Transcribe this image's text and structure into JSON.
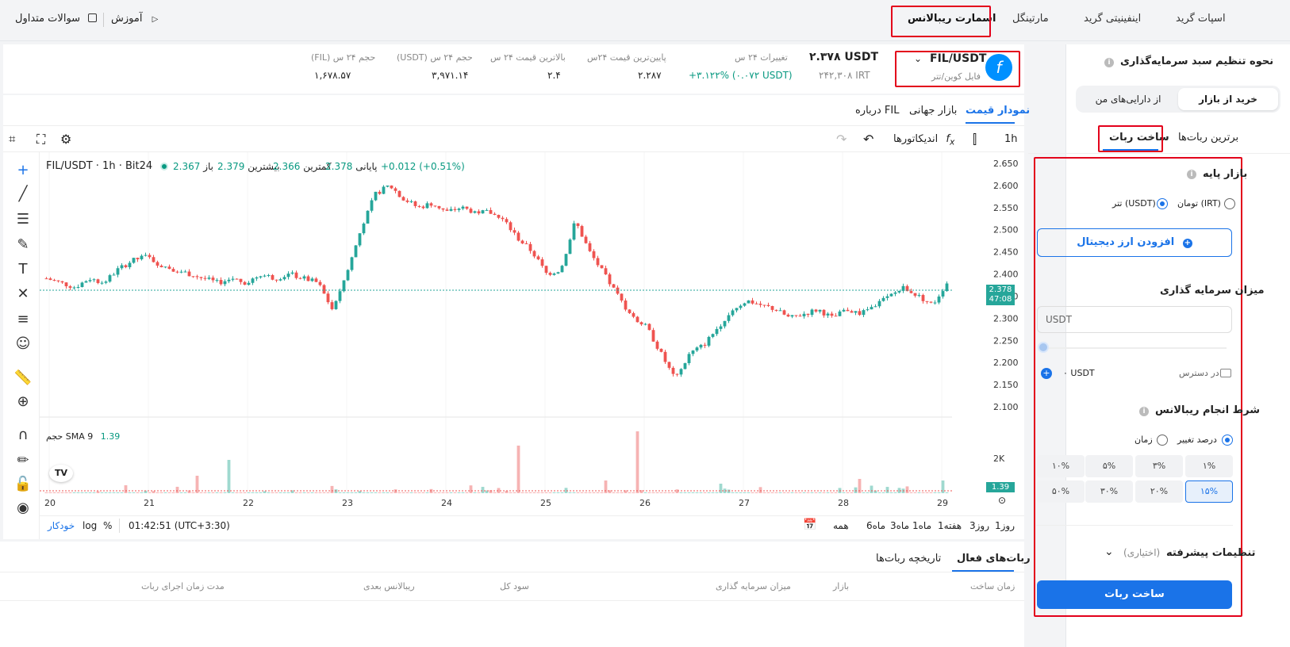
{
  "topnav": {
    "tabs": [
      "اسپات گرید",
      "اینفینیتی گرید",
      "مارتینگل",
      "اسمارت ریبالانس"
    ],
    "faq": "سوالات متداول",
    "tutorial": "آموزش"
  },
  "ticker": {
    "pair": "FIL/USDT",
    "pair_fa": "فایل کوین/تتر",
    "price_usdt": "۲.۳۷۸ USDT",
    "price_irt": "۲۴۲,۳۰۸ IRT",
    "stats": [
      {
        "label": "تغییرات ۲۴ س",
        "value": "+۳.۱۲۲% (۰.۰۷۲ USDT)"
      },
      {
        "label": "پایین‌ترین قیمت ۲۴س",
        "value": "۲.۲۸۷"
      },
      {
        "label": "بالاترین قیمت ۲۴ س",
        "value": "۲.۴"
      },
      {
        "label": "حجم ۲۴ س (USDT)",
        "value": "۳,۹۷۱.۱۴"
      },
      {
        "label": "حجم ۲۴ س (FIL)",
        "value": "۱,۶۷۸.۵۷"
      }
    ]
  },
  "chart_tabs": [
    "نمودار قیمت",
    "بازار جهانی",
    "درباره FIL"
  ],
  "toolbar": {
    "interval": "1h",
    "indicators": "اندیکاتورها"
  },
  "legend": {
    "symbol": "FIL/USDT · 1h · Bit24",
    "open_label": "باز",
    "open": "2.367",
    "high_label": "بیشترین",
    "high": "2.379",
    "low_label": "کمترین",
    "low": "2.366",
    "close_label": "پایانی",
    "close": "2.378",
    "change": "+0.012 (+0.51%)"
  },
  "volume_legend": {
    "label": "حجم",
    "sma": "SMA 9",
    "value": "1.39"
  },
  "price_badge": {
    "price": "2.378",
    "timer": "47:08"
  },
  "volume_badge": "1.39",
  "y_axis_labels": [
    "2.650",
    "2.600",
    "2.550",
    "2.500",
    "2.450",
    "2.400",
    "2.350",
    "2.300",
    "2.250",
    "2.200",
    "2.150",
    "2.100"
  ],
  "volume_axis_label": "2K",
  "x_axis_labels": [
    "20",
    "21",
    "22",
    "23",
    "24",
    "25",
    "26",
    "27",
    "28",
    "29"
  ],
  "ranges": [
    "1روز",
    "3روز",
    "1هفته",
    "1ماه",
    "3ماه",
    "6ماه",
    "همه"
  ],
  "status": {
    "time": "01:42:51 (UTC+3:30)",
    "pct": "%",
    "log": "log",
    "auto": "خودکار"
  },
  "bottom": {
    "tabs": [
      "ربات‌های فعال",
      "تاریخچه ربات‌ها"
    ],
    "columns": [
      "زمان ساخت",
      "بازار",
      "میزان سرمایه گذاری",
      "سود کل",
      "ریبالانس بعدی",
      "مدت زمان اجرای ربات"
    ]
  },
  "panel": {
    "title": "نحوه تنظیم سبد سرمایه‌گذاری",
    "seg": [
      "خرید از بازار",
      "از دارایی‌های من"
    ],
    "tabs": [
      "برترین ربات‌ها",
      "ساخت ربات"
    ],
    "base_market": "بازار پایه",
    "base_opts": [
      "تومان (IRT)",
      "تتر (USDT)"
    ],
    "add_crypto": "افزودن ارز دیجیتال",
    "invest_label": "میزان سرمایه گذاری",
    "invest_placeholder": "USDT",
    "available_label": "در دسترس:",
    "available_value": "۰ USDT",
    "rebalance_cond": "شرط انجام ریبالانس",
    "cond_opts": [
      "درصد تغییر",
      "زمان"
    ],
    "percents": [
      "۱%",
      "۳%",
      "۵%",
      "۱۰%",
      "۱۵%",
      "۲۰%",
      "۳۰%",
      "۵۰%"
    ],
    "advanced": "تنظیمات پیشرفته",
    "optional": "(اختیاری)",
    "submit": "ساخت ربات"
  },
  "colors": {
    "up": "#26a69a",
    "down": "#ef5350",
    "accent": "#1a73e8",
    "highlight": "#e3001b"
  },
  "chart_data": {
    "type": "candlestick",
    "symbol": "FIL/USDT",
    "interval": "1h",
    "x_ticks": [
      "20",
      "21",
      "22",
      "23",
      "24",
      "25",
      "26",
      "27",
      "28",
      "29"
    ],
    "ylim": [
      2.1,
      2.65
    ],
    "close_path": [
      2.39,
      2.38,
      2.37,
      2.39,
      2.38,
      2.41,
      2.43,
      2.44,
      2.42,
      2.41,
      2.4,
      2.39,
      2.38,
      2.39,
      2.38,
      2.4,
      2.39,
      2.4,
      2.39,
      2.38,
      2.32,
      2.4,
      2.5,
      2.58,
      2.6,
      2.57,
      2.55,
      2.56,
      2.54,
      2.55,
      2.54,
      2.54,
      2.52,
      2.48,
      2.45,
      2.4,
      2.41,
      2.52,
      2.45,
      2.4,
      2.35,
      2.3,
      2.28,
      2.22,
      2.16,
      2.22,
      2.24,
      2.28,
      2.32,
      2.34,
      2.33,
      2.32,
      2.3,
      2.31,
      2.32,
      2.3,
      2.32,
      2.31,
      2.33,
      2.35,
      2.37,
      2.35,
      2.33,
      2.38
    ],
    "volume": "bars per hour; peaks near day 20.6 (~1.5K), 24.7 (~2K), 25.9 (~2.3K)"
  }
}
